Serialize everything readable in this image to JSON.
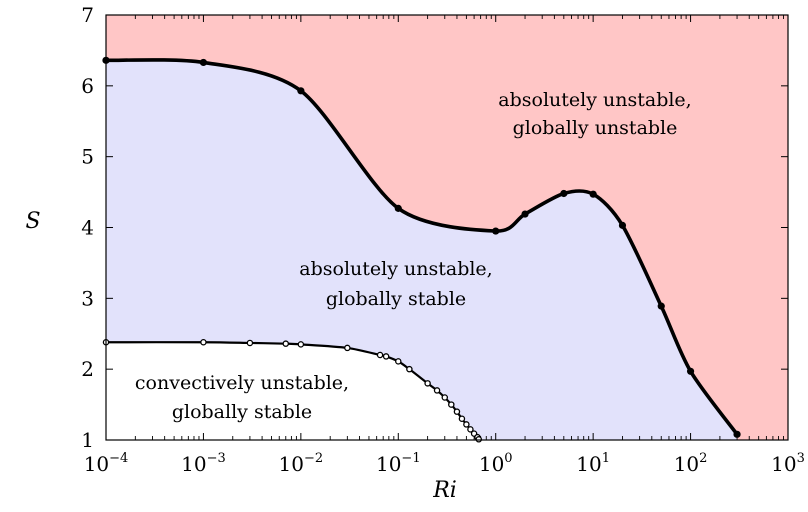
{
  "chart_data": {
    "type": "area",
    "xlabel": "Ri",
    "ylabel": "S",
    "xscale": "log",
    "xlim": [
      0.0001,
      1000
    ],
    "ylim": [
      1,
      7
    ],
    "grid": false,
    "x_ticks": [
      {
        "base": "10",
        "exp": "−4",
        "value": 0.0001
      },
      {
        "base": "10",
        "exp": "−3",
        "value": 0.001
      },
      {
        "base": "10",
        "exp": "−2",
        "value": 0.01
      },
      {
        "base": "10",
        "exp": "−1",
        "value": 0.1
      },
      {
        "base": "10",
        "exp": "0",
        "value": 1
      },
      {
        "base": "10",
        "exp": "1",
        "value": 10
      },
      {
        "base": "10",
        "exp": "2",
        "value": 100
      },
      {
        "base": "10",
        "exp": "3",
        "value": 1000
      }
    ],
    "y_ticks": [
      "1",
      "2",
      "3",
      "4",
      "5",
      "6",
      "7"
    ],
    "colors": {
      "absolute_global_unstable": "#ffc6c6",
      "absolute_global_stable": "#e2e2fb",
      "convective": "#ffffff",
      "line": "#000000"
    },
    "regions": [
      {
        "id": "absolute_global_unstable",
        "line1": "absolutely unstable,",
        "line2": "globally unstable"
      },
      {
        "id": "absolute_global_stable",
        "line1": "absolutely unstable,",
        "line2": "globally stable"
      },
      {
        "id": "convective",
        "line1": "convectively unstable,",
        "line2": "globally stable"
      }
    ],
    "series": [
      {
        "id": "upper",
        "marker": "filled",
        "x": [
          0.0001,
          0.001,
          0.01,
          0.1,
          1,
          2,
          5,
          10,
          20,
          50,
          100,
          300
        ],
        "y": [
          6.36,
          6.33,
          5.93,
          4.27,
          3.95,
          4.19,
          4.48,
          4.47,
          4.03,
          2.89,
          1.97,
          1.08
        ]
      },
      {
        "id": "lower",
        "marker": "open",
        "x": [
          0.0001,
          0.001,
          0.003,
          0.007,
          0.01,
          0.03,
          0.065,
          0.075,
          0.1,
          0.13,
          0.2,
          0.25,
          0.3,
          0.35,
          0.4,
          0.45,
          0.5,
          0.55,
          0.6,
          0.65,
          0.67
        ],
        "y": [
          2.38,
          2.38,
          2.37,
          2.36,
          2.35,
          2.3,
          2.2,
          2.18,
          2.11,
          2.0,
          1.8,
          1.7,
          1.6,
          1.5,
          1.4,
          1.3,
          1.22,
          1.15,
          1.09,
          1.04,
          1.01
        ]
      }
    ]
  }
}
